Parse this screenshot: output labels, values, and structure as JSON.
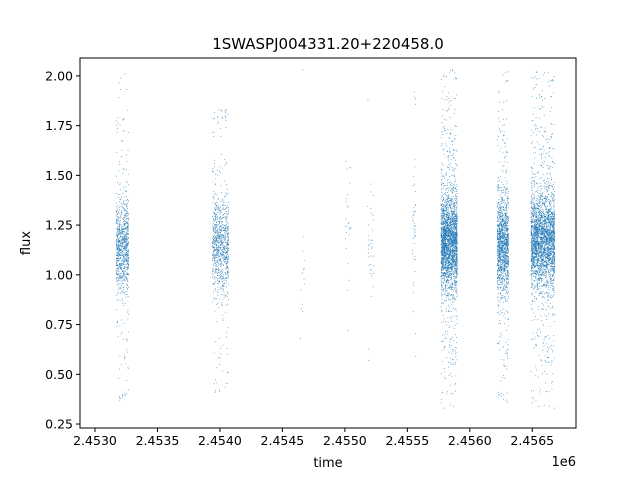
{
  "chart_data": {
    "type": "scatter",
    "title": "1SWASPJ004331.20+220458.0",
    "xlabel": "time",
    "ylabel": "flux",
    "x_offset_label": "1e6",
    "x_ticks": [
      "2.4530",
      "2.4535",
      "2.4540",
      "2.4545",
      "2.4550",
      "2.4555",
      "2.4560",
      "2.4565"
    ],
    "x_tick_values": [
      2453000,
      2453500,
      2454000,
      2454500,
      2455000,
      2455500,
      2456000,
      2456500
    ],
    "y_ticks": [
      "0.25",
      "0.50",
      "0.75",
      "1.00",
      "1.25",
      "1.50",
      "1.75",
      "2.00"
    ],
    "y_tick_values": [
      0.25,
      0.5,
      0.75,
      1.0,
      1.25,
      1.5,
      1.75,
      2.0
    ],
    "xlim": [
      2452880,
      2456850
    ],
    "ylim": [
      0.23,
      2.09
    ],
    "grid": false,
    "marker_color": "#1f77b4",
    "observing_seasons": [
      {
        "x_start": 2453170,
        "x_end": 2453270,
        "center_flux": 1.14,
        "flux_min": 0.37,
        "flux_max": 2.01,
        "approx_points": 900
      },
      {
        "x_start": 2453940,
        "x_end": 2454070,
        "center_flux": 1.15,
        "flux_min": 0.41,
        "flux_max": 1.83,
        "approx_points": 900
      },
      {
        "x_start": 2454640,
        "x_end": 2454680,
        "center_flux": 1.0,
        "flux_min": 0.68,
        "flux_max": 2.03,
        "approx_points": 12
      },
      {
        "x_start": 2455000,
        "x_end": 2455050,
        "center_flux": 1.3,
        "flux_min": 0.72,
        "flux_max": 1.57,
        "approx_points": 25
      },
      {
        "x_start": 2455180,
        "x_end": 2455230,
        "center_flux": 1.15,
        "flux_min": 0.57,
        "flux_max": 1.88,
        "approx_points": 35
      },
      {
        "x_start": 2455540,
        "x_end": 2455570,
        "center_flux": 1.25,
        "flux_min": 0.59,
        "flux_max": 1.92,
        "approx_points": 45
      },
      {
        "x_start": 2455770,
        "x_end": 2455900,
        "center_flux": 1.16,
        "flux_min": 0.33,
        "flux_max": 2.03,
        "approx_points": 2600
      },
      {
        "x_start": 2456220,
        "x_end": 2456310,
        "center_flux": 1.15,
        "flux_min": 0.36,
        "flux_max": 2.02,
        "approx_points": 1400
      },
      {
        "x_start": 2456490,
        "x_end": 2456680,
        "center_flux": 1.17,
        "flux_min": 0.33,
        "flux_max": 2.02,
        "approx_points": 3000
      }
    ]
  }
}
